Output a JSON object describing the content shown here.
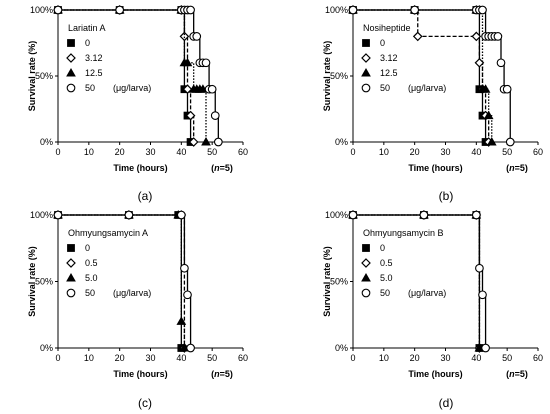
{
  "chart_data": [
    {
      "type": "line",
      "caption": "(a)",
      "legend_title": "Lariatin A",
      "ylabel": "Survival rate (%)",
      "xlabel": "Time (hours)",
      "n_label_prefix": "n",
      "n_label_value": "=5",
      "n_open": "(",
      "n_close": ")",
      "xlim": [
        0,
        60
      ],
      "ylim": [
        0,
        100
      ],
      "x_ticks": [
        "0",
        "10",
        "20",
        "30",
        "40",
        "50",
        "60"
      ],
      "y_ticks": [
        "0%",
        "50%",
        "100%"
      ],
      "legend_placement": "left",
      "legend_unit": "(μg/larva)",
      "series": [
        {
          "name": "0",
          "marker": "square",
          "dash": "none",
          "x": [
            0,
            20,
            40,
            41,
            42,
            43
          ],
          "y": [
            100,
            100,
            100,
            40,
            20,
            0
          ]
        },
        {
          "name": "3.12",
          "marker": "diamond",
          "dash": "dash",
          "x": [
            0,
            20,
            40,
            41,
            42,
            43,
            44
          ],
          "y": [
            100,
            100,
            100,
            80,
            40,
            20,
            0
          ]
        },
        {
          "name": "12.5",
          "marker": "triangle",
          "dash": "dot",
          "x": [
            0,
            20,
            40,
            41,
            42,
            44,
            45,
            46,
            47,
            48
          ],
          "y": [
            100,
            100,
            100,
            60,
            60,
            40,
            40,
            40,
            40,
            0
          ]
        },
        {
          "name": "50",
          "marker": "circle",
          "dash": "none",
          "x": [
            0,
            20,
            40,
            41,
            42,
            43,
            44,
            45,
            46,
            47,
            48,
            49,
            50,
            51,
            52
          ],
          "y": [
            100,
            100,
            100,
            100,
            100,
            100,
            80,
            80,
            60,
            60,
            60,
            40,
            40,
            20,
            0
          ]
        }
      ]
    },
    {
      "type": "line",
      "caption": "(b)",
      "legend_title": "Nosiheptide",
      "ylabel": "Survival rate (%)",
      "xlabel": "Time (hours)",
      "n_label_prefix": "n",
      "n_label_value": "=5",
      "n_open": "(",
      "n_close": ")",
      "xlim": [
        0,
        60
      ],
      "ylim": [
        0,
        100
      ],
      "x_ticks": [
        "0",
        "10",
        "20",
        "30",
        "40",
        "50",
        "60"
      ],
      "y_ticks": [
        "0%",
        "50%",
        "100%"
      ],
      "legend_placement": "left",
      "legend_unit": "(μg/larva)",
      "series": [
        {
          "name": "0",
          "marker": "square",
          "dash": "none",
          "x": [
            0,
            20,
            40,
            41,
            42,
            43
          ],
          "y": [
            100,
            100,
            100,
            40,
            20,
            0
          ]
        },
        {
          "name": "3.12",
          "marker": "diamond",
          "dash": "dash",
          "x": [
            0,
            20,
            21,
            40,
            41,
            42,
            43,
            44
          ],
          "y": [
            100,
            100,
            80,
            80,
            60,
            40,
            20,
            0
          ]
        },
        {
          "name": "12.5",
          "marker": "triangle",
          "dash": "dot",
          "x": [
            0,
            20,
            40,
            41,
            42,
            43,
            44,
            45
          ],
          "y": [
            100,
            100,
            100,
            100,
            40,
            40,
            20,
            0
          ]
        },
        {
          "name": "50",
          "marker": "circle",
          "dash": "none",
          "x": [
            0,
            20,
            40,
            41,
            42,
            43,
            44,
            45,
            46,
            47,
            48,
            49,
            50,
            51
          ],
          "y": [
            100,
            100,
            100,
            100,
            100,
            80,
            80,
            80,
            80,
            80,
            60,
            40,
            40,
            0
          ]
        }
      ]
    },
    {
      "type": "line",
      "caption": "(c)",
      "legend_title": "Ohmyungsamycin A",
      "ylabel": "Survival rate (%)",
      "xlabel": "Time (hours)",
      "n_label_prefix": "n",
      "n_label_value": "=5",
      "n_open": "(",
      "n_close": ")",
      "xlim": [
        0,
        60
      ],
      "ylim": [
        0,
        100
      ],
      "x_ticks": [
        "0",
        "10",
        "20",
        "30",
        "40",
        "50",
        "60"
      ],
      "y_ticks": [
        "0%",
        "50%",
        "100%"
      ],
      "legend_placement": "left",
      "legend_unit": "(μg/larva)",
      "series": [
        {
          "name": "0",
          "marker": "square",
          "dash": "none",
          "x": [
            0,
            23,
            39,
            40
          ],
          "y": [
            100,
            100,
            100,
            0
          ]
        },
        {
          "name": "0.5",
          "marker": "diamond",
          "dash": "dash",
          "x": [
            0,
            23,
            40,
            41
          ],
          "y": [
            100,
            100,
            100,
            0
          ]
        },
        {
          "name": "5.0",
          "marker": "triangle",
          "dash": "dot",
          "x": [
            0,
            23,
            39,
            40,
            41
          ],
          "y": [
            100,
            100,
            100,
            20,
            0
          ]
        },
        {
          "name": "50",
          "marker": "circle",
          "dash": "none",
          "x": [
            0,
            23,
            40,
            41,
            42,
            43
          ],
          "y": [
            100,
            100,
            100,
            60,
            40,
            0
          ]
        }
      ]
    },
    {
      "type": "line",
      "caption": "(d)",
      "legend_title": "Ohmyungsamycin B",
      "ylabel": "Survival rate (%)",
      "xlabel": "Time (hours)",
      "n_label_prefix": "n",
      "n_label_value": "=5",
      "n_open": "(",
      "n_close": ")",
      "xlim": [
        0,
        60
      ],
      "ylim": [
        0,
        100
      ],
      "x_ticks": [
        "0",
        "10",
        "20",
        "30",
        "40",
        "50",
        "60"
      ],
      "y_ticks": [
        "0%",
        "50%",
        "100%"
      ],
      "legend_placement": "left",
      "legend_unit": "(μg/larva)",
      "series": [
        {
          "name": "0",
          "marker": "square",
          "dash": "none",
          "x": [
            0,
            23,
            40,
            41
          ],
          "y": [
            100,
            100,
            100,
            0
          ]
        },
        {
          "name": "0.5",
          "marker": "diamond",
          "dash": "dash",
          "x": [
            0,
            23,
            40,
            41
          ],
          "y": [
            100,
            100,
            100,
            0
          ]
        },
        {
          "name": "5.0",
          "marker": "triangle",
          "dash": "dot",
          "x": [
            0,
            23,
            40,
            41
          ],
          "y": [
            100,
            100,
            100,
            0
          ]
        },
        {
          "name": "50",
          "marker": "circle",
          "dash": "none",
          "x": [
            0,
            23,
            40,
            41,
            42,
            43
          ],
          "y": [
            100,
            100,
            100,
            60,
            40,
            0
          ]
        }
      ]
    }
  ]
}
